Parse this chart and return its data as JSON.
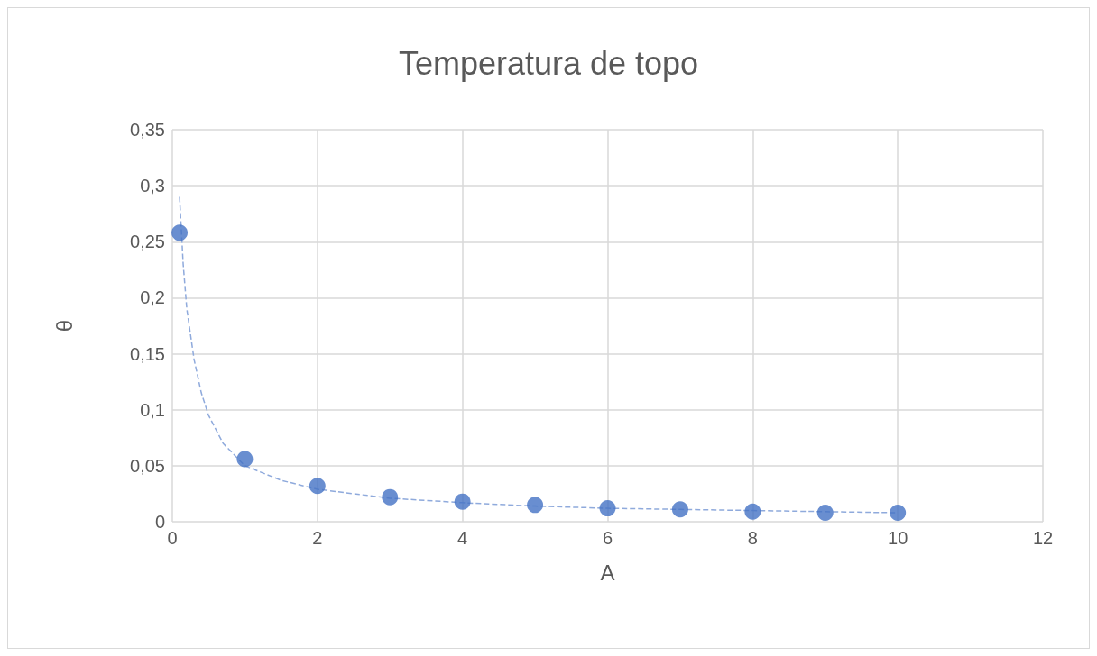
{
  "chart_data": {
    "type": "scatter",
    "title": "Temperatura de topo",
    "xlabel": "A",
    "ylabel": "θ",
    "xlim": [
      0,
      12
    ],
    "xticks": [
      0,
      2,
      4,
      6,
      8,
      10,
      12
    ],
    "ylim": [
      0,
      0.35
    ],
    "yticks": [
      0,
      {
        "value": 0.05,
        "label": "0,05"
      },
      {
        "value": 0.1,
        "label": "0,1"
      },
      {
        "value": 0.15,
        "label": "0,15"
      },
      {
        "value": 0.2,
        "label": "0,2"
      },
      {
        "value": 0.25,
        "label": "0,25"
      },
      {
        "value": 0.3,
        "label": "0,3"
      },
      {
        "value": 0.35,
        "label": "0,35"
      }
    ],
    "grid": true,
    "series": [
      {
        "color": "#4472c4",
        "marker": "circle",
        "x": [
          0.1,
          1,
          2,
          3,
          4,
          5,
          6,
          7,
          8,
          9,
          10
        ],
        "values": [
          0.258,
          0.056,
          0.032,
          0.022,
          0.018,
          0.015,
          0.012,
          0.011,
          0.009,
          0.008,
          0.008
        ]
      },
      {
        "type": "line",
        "color": "#8faadc",
        "marker": "none",
        "line_style": "dashed",
        "x": [
          0.1,
          0.15,
          0.2,
          0.3,
          0.4,
          0.5,
          0.7,
          1,
          1.5,
          2,
          3,
          4,
          5,
          6,
          7,
          8,
          9,
          10
        ],
        "values": [
          0.29,
          0.23,
          0.19,
          0.145,
          0.115,
          0.095,
          0.07,
          0.05,
          0.037,
          0.029,
          0.021,
          0.017,
          0.014,
          0.012,
          0.011,
          0.01,
          0.009,
          0.008
        ]
      }
    ]
  }
}
